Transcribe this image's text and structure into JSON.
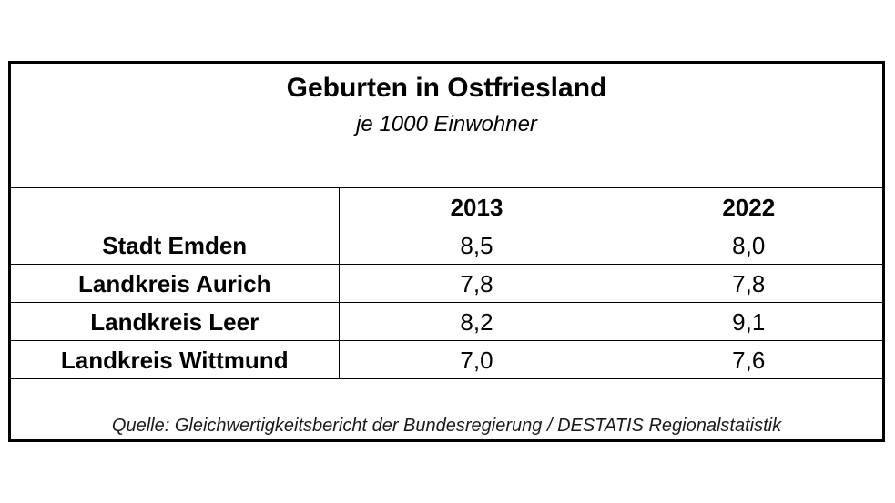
{
  "title": "Geburten in Ostfriesland",
  "subtitle": "je 1000 Einwohner",
  "table": {
    "headers": [
      "",
      "2013",
      "2022"
    ],
    "rows": [
      {
        "label": "Stadt Emden",
        "v2013": "8,5",
        "v2022": "8,0"
      },
      {
        "label": "Landkreis Aurich",
        "v2013": "7,8",
        "v2022": "7,8"
      },
      {
        "label": "Landkreis Leer",
        "v2013": "8,2",
        "v2022": "9,1"
      },
      {
        "label": "Landkreis Wittmund",
        "v2013": "7,0",
        "v2022": "7,6"
      }
    ]
  },
  "source": "Quelle: Gleichwertigkeitsbericht der Bundesregierung / DESTATIS Regionalstatistik"
}
